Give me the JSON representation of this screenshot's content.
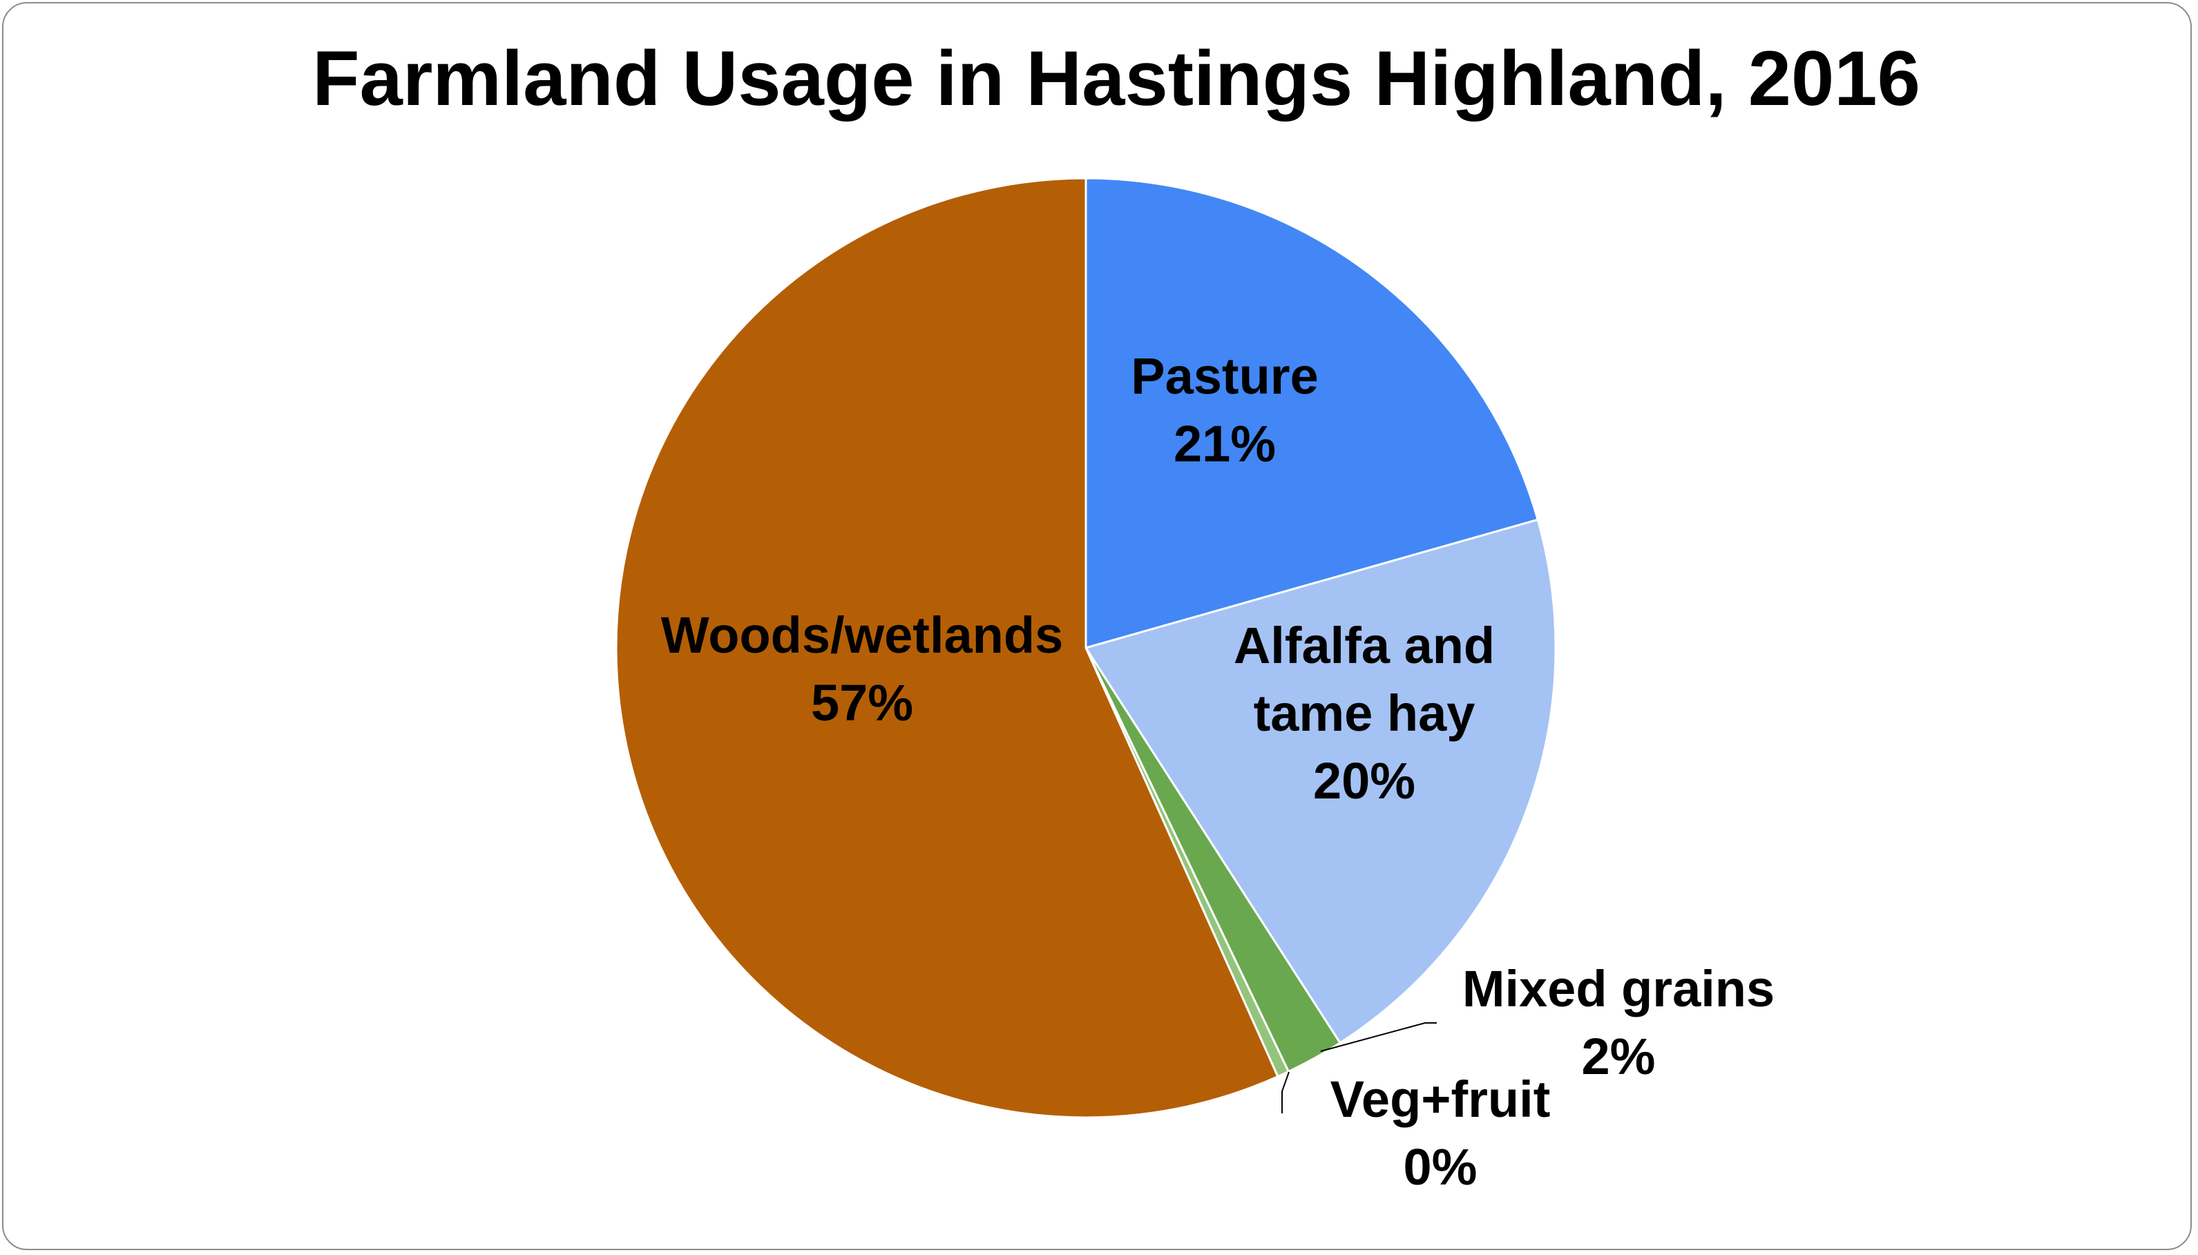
{
  "chart_data": {
    "type": "pie",
    "title": "Farmland Usage in Hastings Highland, 2016",
    "slices": [
      {
        "label_lines": [
          "Pasture"
        ],
        "value": 20.6,
        "percent_label": "21%",
        "color": "#4287f5"
      },
      {
        "label_lines": [
          "Alfalfa and",
          "tame hay"
        ],
        "value": 20.3,
        "percent_label": "20%",
        "color": "#a4c2f4"
      },
      {
        "label_lines": [
          "Mixed grains"
        ],
        "value": 2.0,
        "percent_label": "2%",
        "color": "#6aa84f"
      },
      {
        "label_lines": [
          "Veg+fruit"
        ],
        "value": 0.4,
        "percent_label": "0%",
        "color": "#93c47d"
      },
      {
        "label_lines": [
          "Woods/wetlands"
        ],
        "value": 56.7,
        "percent_label": "57%",
        "color": "#b45f06"
      }
    ],
    "start_angle_deg": 0,
    "direction": "clockwise",
    "legend": "none",
    "data_labels": "category-and-percent"
  }
}
